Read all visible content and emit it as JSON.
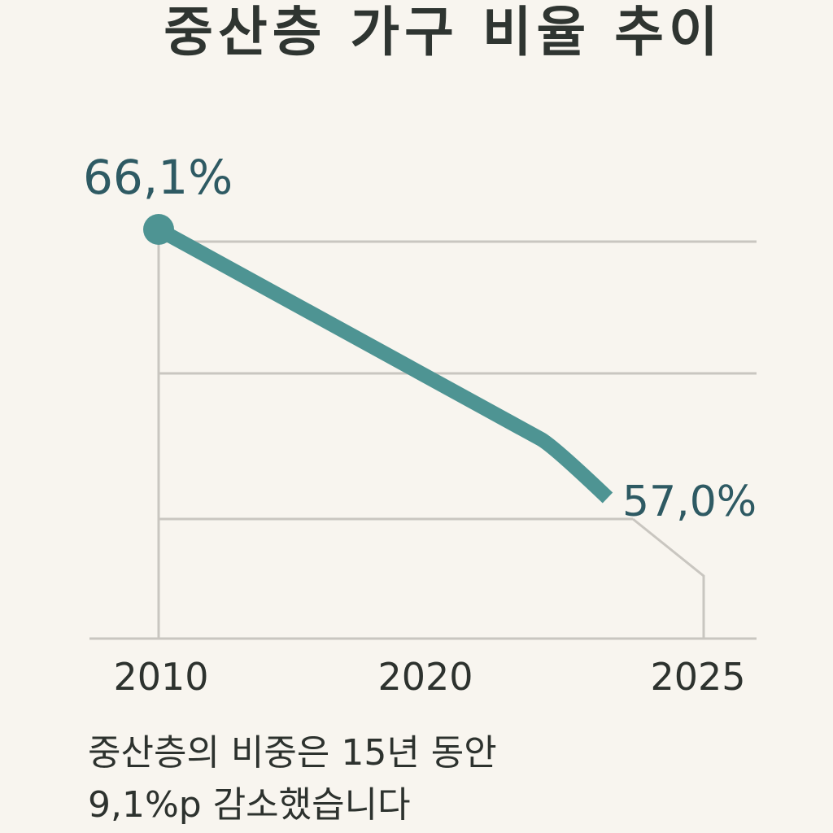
{
  "chart_data": {
    "type": "line",
    "title": "중산층 가구 비율 추이",
    "x": [
      2010,
      2025
    ],
    "values": [
      66.1,
      57.0
    ],
    "tick_labels": [
      "2010",
      "2020",
      "2025"
    ],
    "data_labels": [
      "66,1%",
      "57,0%"
    ],
    "grid": true,
    "colors": {
      "line": "#4e9493",
      "label": "#2e5a63",
      "grid": "#c9c6c0"
    }
  },
  "caption": {
    "line1": "중산층의 비중은 15년 동안",
    "line2": "9,1%p 감소했습니다"
  }
}
